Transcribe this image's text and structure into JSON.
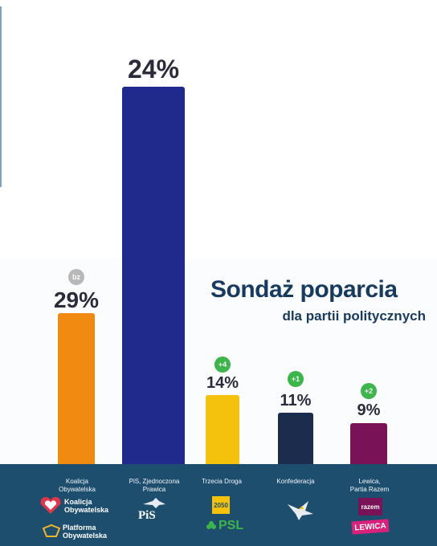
{
  "title": "Sondaż poparcia",
  "subtitle": "dla partii politycznych",
  "chart_data": {
    "type": "bar",
    "title": "Sondaż poparcia dla partii politycznych",
    "categories": [
      "Koalicja Obywatelska",
      "PiS, Zjednoczona Prawica",
      "Trzecia Droga",
      "Konfederacja",
      "Lewica, Partia Razem"
    ],
    "values": [
      29,
      24,
      14,
      11,
      9
    ],
    "value_labels": [
      "29%",
      "24%",
      "14%",
      "11%",
      "9%"
    ],
    "changes": [
      "bz",
      "",
      "+4",
      "+1",
      "+2"
    ],
    "colors": [
      "#f08a10",
      "#1f2a8c",
      "#f4c20d",
      "#1c2c4c",
      "#7a1257"
    ],
    "ylim": [
      0,
      30
    ]
  },
  "parties": [
    {
      "label": "Koalicja\nObywatelska",
      "logo_text_1": "Koalicja",
      "logo_text_2": "Obywatelska",
      "logo_text_3": "Platforma",
      "logo_text_4": "Obywatelska"
    },
    {
      "label": "PiS, Zjednoczona\nPrawica",
      "logo_text_1": "PiS"
    },
    {
      "label": "Trzecia Droga",
      "logo_text_1": "PSL",
      "logo_text_2": "2050"
    },
    {
      "label": "Konfederacja"
    },
    {
      "label": "Lewica,\nPartia Razem",
      "logo_text_1": "razem",
      "logo_text_2": "LEWICA"
    }
  ]
}
